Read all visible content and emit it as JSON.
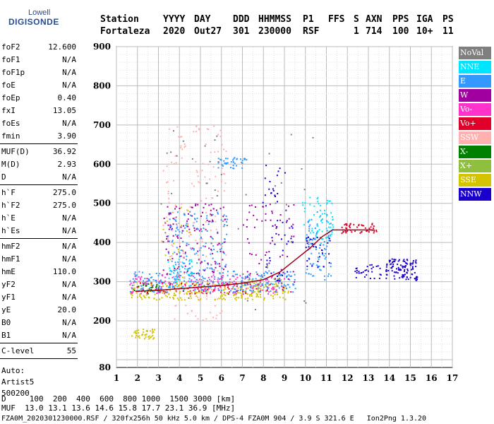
{
  "logo": {
    "top": "Lowell",
    "bottom": "DIGISONDE"
  },
  "header": {
    "cols": [
      {
        "h": "Station",
        "v": "Fortaleza"
      },
      {
        "h": "YYYY",
        "v": "2020"
      },
      {
        "h": "DAY",
        "v": "Out27"
      },
      {
        "h": "DDD",
        "v": "301"
      },
      {
        "h": "HHMMSS",
        "v": "230000"
      },
      {
        "h": "P1",
        "v": "RSF"
      },
      {
        "h": "FFS",
        "v": ""
      },
      {
        "h": "S",
        "v": "1"
      },
      {
        "h": "AXN",
        "v": "714"
      },
      {
        "h": "PPS",
        "v": "100"
      },
      {
        "h": "IGA",
        "v": "10+"
      },
      {
        "h": "PS",
        "v": "11"
      }
    ]
  },
  "params": [
    [
      {
        "n": "foF2",
        "v": "12.600"
      },
      {
        "n": "foF1",
        "v": "N/A"
      },
      {
        "n": "foF1p",
        "v": "N/A"
      },
      {
        "n": "foE",
        "v": "N/A"
      },
      {
        "n": "foEp",
        "v": "0.40"
      },
      {
        "n": "fxI",
        "v": "13.05"
      },
      {
        "n": "foEs",
        "v": "N/A"
      },
      {
        "n": "fmin",
        "v": "3.90"
      }
    ],
    [
      {
        "n": "MUF(D)",
        "v": "36.92"
      },
      {
        "n": "M(D)",
        "v": "2.93"
      },
      {
        "n": "D",
        "v": "N/A"
      }
    ],
    [
      {
        "n": "h`F",
        "v": "275.0"
      },
      {
        "n": "h`F2",
        "v": "275.0"
      },
      {
        "n": "h`E",
        "v": "N/A"
      },
      {
        "n": "h`Es",
        "v": "N/A"
      }
    ],
    [
      {
        "n": "hmF2",
        "v": "N/A"
      },
      {
        "n": "hmF1",
        "v": "N/A"
      },
      {
        "n": "hmE",
        "v": "110.0"
      },
      {
        "n": "yF2",
        "v": "N/A"
      },
      {
        "n": "yF1",
        "v": "N/A"
      },
      {
        "n": "yE",
        "v": "20.0"
      },
      {
        "n": "B0",
        "v": "N/A"
      },
      {
        "n": "B1",
        "v": "N/A"
      }
    ],
    [
      {
        "n": "C-level",
        "v": "55"
      }
    ]
  ],
  "autoscaler": {
    "l1": "Auto:",
    "l2": "Artist5",
    "l3": "500200"
  },
  "legend": [
    {
      "label": "NoVal",
      "color": "#7f7f7f"
    },
    {
      "label": "NNE",
      "color": "#00e5ff"
    },
    {
      "label": "E",
      "color": "#3399ff"
    },
    {
      "label": "W",
      "color": "#a000a0"
    },
    {
      "label": "Vo-",
      "color": "#ff33cc"
    },
    {
      "label": "Vo+",
      "color": "#e0002a"
    },
    {
      "label": "SSW",
      "color": "#ffb0b0"
    },
    {
      "label": "X-",
      "color": "#008000"
    },
    {
      "label": "X+",
      "color": "#8fbf3f"
    },
    {
      "label": "SSE",
      "color": "#d4c400"
    },
    {
      "label": "NNW",
      "color": "#1a00cc"
    }
  ],
  "footer": {
    "line1": "D     100  200  400  600  800 1000  1500 3000 [km]",
    "line2": "MUF  13.0 13.1 13.6 14.6 15.8 17.7 23.1 36.9 [MHz]",
    "line3": "FZA0M_2020301230000.RSF / 320fx256h 50 kHz 5.0 km / DPS-4 FZA0M 904 / 3.9 S 321.6 E   Ion2Png 1.3.20"
  },
  "chart_data": {
    "type": "scatter",
    "xlabel": "",
    "ylabel": "",
    "xlim": [
      1,
      17
    ],
    "ylim": [
      80,
      900
    ],
    "xticks": [
      1,
      2,
      3,
      4,
      5,
      6,
      7,
      8,
      9,
      10,
      11,
      12,
      13,
      14,
      15,
      16,
      17
    ],
    "yticks": [
      80,
      200,
      300,
      400,
      500,
      600,
      700,
      800,
      900
    ],
    "grid": true,
    "trace": {
      "name": "",
      "color": "#a0001a",
      "points": [
        [
          1.9,
          275
        ],
        [
          3,
          278
        ],
        [
          4,
          282
        ],
        [
          5,
          286
        ],
        [
          6,
          290
        ],
        [
          7,
          296
        ],
        [
          8,
          305
        ],
        [
          8.8,
          325
        ],
        [
          9.5,
          355
        ],
        [
          10.2,
          385
        ],
        [
          10.8,
          415
        ],
        [
          11.3,
          432
        ],
        [
          12.3,
          432
        ],
        [
          13.3,
          432
        ]
      ]
    },
    "clusters": [
      {
        "series": "SSE",
        "x": [
          1.6,
          9.2
        ],
        "y": [
          255,
          300
        ],
        "n": 260
      },
      {
        "series": "SSE",
        "x": [
          1.7,
          2.8
        ],
        "y": [
          155,
          180
        ],
        "n": 40
      },
      {
        "series": "SSE",
        "x": [
          3.0,
          4.5
        ],
        "y": [
          300,
          500
        ],
        "n": 20
      },
      {
        "series": "Vo-",
        "x": [
          1.6,
          9.0
        ],
        "y": [
          270,
          320
        ],
        "n": 180
      },
      {
        "series": "E",
        "x": [
          1.6,
          9.5
        ],
        "y": [
          275,
          330
        ],
        "n": 260
      },
      {
        "series": "E",
        "x": [
          3.4,
          6.3
        ],
        "y": [
          330,
          480
        ],
        "n": 140
      },
      {
        "series": "E",
        "x": [
          5.8,
          7.2
        ],
        "y": [
          590,
          620
        ],
        "n": 40
      },
      {
        "series": "E",
        "x": [
          10.0,
          11.2
        ],
        "y": [
          300,
          480
        ],
        "n": 80
      },
      {
        "series": "W",
        "x": [
          3.2,
          6.2
        ],
        "y": [
          320,
          500
        ],
        "n": 120
      },
      {
        "series": "W",
        "x": [
          7.0,
          9.5
        ],
        "y": [
          300,
          500
        ],
        "n": 60
      },
      {
        "series": "NNE",
        "x": [
          9.8,
          11.3
        ],
        "y": [
          400,
          520
        ],
        "n": 70
      },
      {
        "series": "NNE",
        "x": [
          3.4,
          4.6
        ],
        "y": [
          280,
          360
        ],
        "n": 40
      },
      {
        "series": "NNW",
        "x": [
          13.8,
          15.3
        ],
        "y": [
          305,
          360
        ],
        "n": 110
      },
      {
        "series": "NNW",
        "x": [
          12.3,
          13.6
        ],
        "y": [
          310,
          345
        ],
        "n": 30
      },
      {
        "series": "NNW",
        "x": [
          7.8,
          9.4
        ],
        "y": [
          300,
          600
        ],
        "n": 50
      },
      {
        "series": "NNW",
        "x": [
          10.0,
          11.2
        ],
        "y": [
          330,
          420
        ],
        "n": 30
      },
      {
        "series": "Vo+",
        "x": [
          11.6,
          13.4
        ],
        "y": [
          425,
          450
        ],
        "n": 50
      },
      {
        "series": "Vo+",
        "x": [
          1.7,
          9.3
        ],
        "y": [
          270,
          300
        ],
        "n": 60
      },
      {
        "series": "SSW",
        "x": [
          3.2,
          6.2
        ],
        "y": [
          350,
          700
        ],
        "n": 120
      },
      {
        "series": "SSW",
        "x": [
          3.6,
          6.0
        ],
        "y": [
          200,
          330
        ],
        "n": 40
      },
      {
        "series": "X-",
        "x": [
          1.8,
          3.0
        ],
        "y": [
          270,
          300
        ],
        "n": 20
      },
      {
        "series": "X+",
        "x": [
          7.0,
          9.0
        ],
        "y": [
          280,
          310
        ],
        "n": 20
      },
      {
        "series": "NoVal",
        "x": [
          3.0,
          10.5
        ],
        "y": [
          230,
          700
        ],
        "n": 60
      }
    ]
  }
}
